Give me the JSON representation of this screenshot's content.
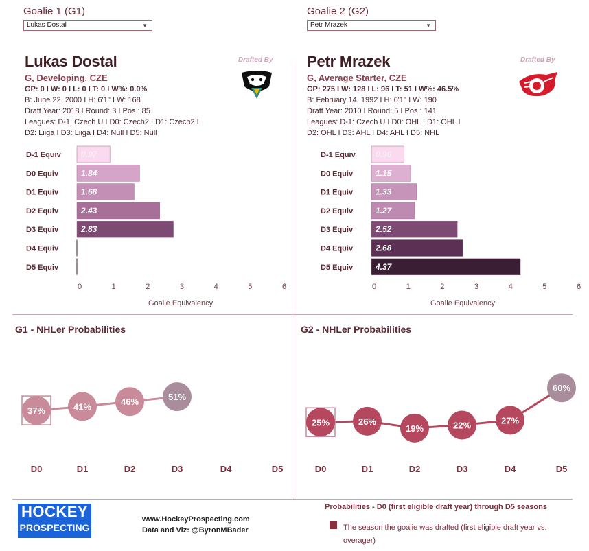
{
  "selectors": {
    "g1": {
      "label": "Goalie 1 (G1)",
      "value": "Lukas Dostal"
    },
    "g2": {
      "label": "Goalie 2 (G2)",
      "value": "Petr Mrazek"
    }
  },
  "drafted_label": "Drafted By",
  "goalie1": {
    "name": "Lukas Dostal",
    "role": "G, Developing, CZE",
    "stats": "GP: 0 I W: 0 I L: 0  I T: 0  I W%: 0.0%",
    "bio": "B: June 22, 2000 I H: 6'1'' I W: 168",
    "draft": "Draft Year: 2018 I Round: 3 I Pos.: 85",
    "leagues1": "Leagues: D-1: Czech U I D0: Czech2 I D1: Czech2 I",
    "leagues2": "D2: Liiga I D3: Liiga I D4: Null I D5: Null",
    "team_logo": "ducks-logo"
  },
  "goalie2": {
    "name": "Petr Mrazek",
    "role": "G, Average Starter, CZE",
    "stats": "GP: 275 I W: 128 I L: 96  I T: 51  I W%: 46.5%",
    "bio": "B: February 14, 1992 I H: 6'1'' I W: 190",
    "draft": "Draft Year: 2010 I Round: 5 I Pos.: 141",
    "leagues1": "Leagues: D-1: Czech U I D0: OHL I D1: OHL I",
    "leagues2": "D2: OHL I D3: AHL I D4: AHL I D5: NHL",
    "team_logo": "red-wings-logo"
  },
  "prob_titles": {
    "g1": "G1 - NHLer Probabilities",
    "g2": "G2 - NHLer Probabilities"
  },
  "footer": {
    "logo_line1": "HOCKEY",
    "logo_line2": "PROSPECTING",
    "website": "www.HockeyProspecting.com",
    "credit": "Data and Viz: @ByronMBader",
    "legend_title": "Probabilities - D0 (first eligible draft year) through D5 seasons",
    "legend_line1": "The season the goalie was drafted (first eligible draft year vs.",
    "legend_line2": "overager)"
  },
  "chart_data": [
    {
      "type": "bar",
      "orientation": "horizontal",
      "categories": [
        "D-1 Equiv",
        "D0 Equiv",
        "D1 Equiv",
        "D2 Equiv",
        "D3 Equiv",
        "D4 Equiv",
        "D5 Equiv"
      ],
      "values": [
        0.97,
        1.84,
        1.68,
        2.43,
        2.83,
        0,
        0
      ],
      "labels": [
        "0.97",
        "1.84",
        "1.68",
        "2.43",
        "2.83",
        "",
        ""
      ],
      "xlabel": "Goalie Equivalency",
      "xlim": [
        0,
        6
      ],
      "xticks": [
        "0",
        "1",
        "2",
        "3",
        "4",
        "5",
        "6"
      ],
      "colors": [
        "#fbd9ef",
        "#d7a4c9",
        "#c48fb4",
        "#a86f98",
        "#7c4a72",
        "#6a3a5e",
        "#4a2540"
      ]
    },
    {
      "type": "bar",
      "orientation": "horizontal",
      "categories": [
        "D-1 Equiv",
        "D0 Equiv",
        "D1 Equiv",
        "D2 Equiv",
        "D3 Equiv",
        "D4 Equiv",
        "D5 Equiv"
      ],
      "values": [
        0.96,
        1.15,
        1.33,
        1.27,
        2.52,
        2.68,
        4.37
      ],
      "labels": [
        "0.96",
        "1.15",
        "1.33",
        "1.27",
        "2.52",
        "2.68",
        "4.37"
      ],
      "xlabel": "Goalie Equivalency",
      "xlim": [
        0,
        6
      ],
      "xticks": [
        "0",
        "1",
        "2",
        "3",
        "4",
        "5",
        "6"
      ],
      "colors": [
        "#fbd9ef",
        "#ddb0d2",
        "#c693b9",
        "#bf8ab2",
        "#7c4a72",
        "#5c3054",
        "#3a1f34"
      ]
    },
    {
      "type": "line",
      "categories": [
        "D0",
        "D1",
        "D2",
        "D3",
        "D4",
        "D5"
      ],
      "values": [
        37,
        41,
        46,
        51,
        null,
        null
      ],
      "labels": [
        "37%",
        "41%",
        "46%",
        "51%",
        "",
        ""
      ],
      "drafted_index": 0,
      "ylim": [
        0,
        100
      ],
      "colors": [
        "#c98a9a",
        "#c98a9a",
        "#c98a9a",
        "#a98d9c"
      ]
    },
    {
      "type": "line",
      "categories": [
        "D0",
        "D1",
        "D2",
        "D3",
        "D4",
        "D5"
      ],
      "values": [
        25,
        26,
        19,
        22,
        27,
        60
      ],
      "labels": [
        "25%",
        "26%",
        "19%",
        "22%",
        "27%",
        "60%"
      ],
      "drafted_index": 0,
      "ylim": [
        0,
        100
      ],
      "colors": [
        "#b5475f",
        "#b5475f",
        "#b5475f",
        "#b5475f",
        "#b5475f",
        "#a98d9c"
      ]
    }
  ]
}
